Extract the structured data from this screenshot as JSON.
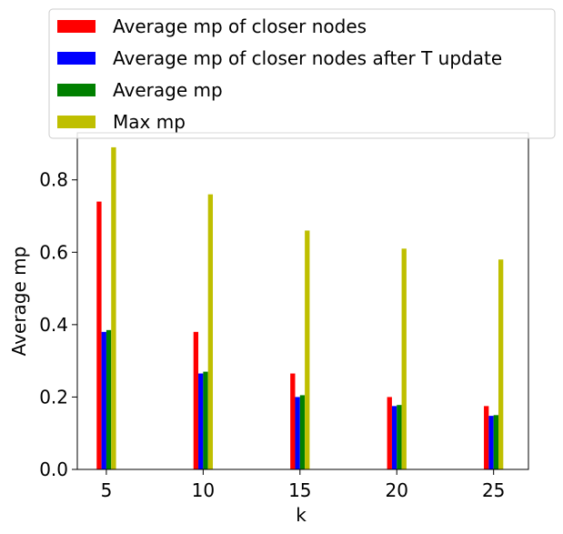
{
  "chart_data": {
    "type": "bar",
    "xlabel": "k",
    "ylabel": "Average mp",
    "categories": [
      "5",
      "10",
      "15",
      "20",
      "25"
    ],
    "x": [
      5,
      10,
      15,
      20,
      25
    ],
    "ylim": [
      0,
      0.93
    ],
    "xlim": [
      3.5,
      26.8
    ],
    "yticks": [
      0.0,
      0.2,
      0.4,
      0.6,
      0.8
    ],
    "ytick_labels": [
      "0.0",
      "0.2",
      "0.4",
      "0.6",
      "0.8"
    ],
    "xtick_labels": [
      "5",
      "10",
      "15",
      "20",
      "25"
    ],
    "grid": false,
    "legend_position": "top",
    "series": [
      {
        "name": "Average mp of closer nodes",
        "color": "#ff0000",
        "values": [
          0.74,
          0.38,
          0.265,
          0.2,
          0.175
        ]
      },
      {
        "name": "Average mp of closer nodes after T update",
        "color": "#0000ff",
        "values": [
          0.38,
          0.265,
          0.2,
          0.175,
          0.148
        ]
      },
      {
        "name": "Average mp",
        "color": "#008000",
        "values": [
          0.385,
          0.27,
          0.205,
          0.178,
          0.15
        ]
      },
      {
        "name": "Max mp",
        "color": "#bfbf00",
        "values": [
          0.89,
          0.76,
          0.66,
          0.61,
          0.58
        ]
      }
    ]
  }
}
